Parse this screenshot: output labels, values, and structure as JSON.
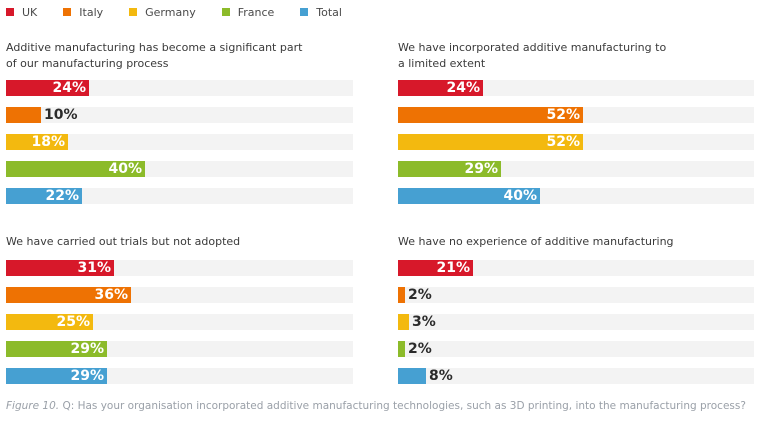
{
  "legend": [
    {
      "label": "UK",
      "color": "#d7182a"
    },
    {
      "label": "Italy",
      "color": "#ee7203"
    },
    {
      "label": "Germany",
      "color": "#f3b90f"
    },
    {
      "label": "France",
      "color": "#8cbb2a"
    },
    {
      "label": "Total",
      "color": "#46a0d2"
    }
  ],
  "caption": {
    "figure": "Figure 10.",
    "text": "Q: Has your organisation incorporated additive manufacturing technologies, such as 3D printing, into the manufacturing process?"
  },
  "chart_data": [
    {
      "type": "bar",
      "title": "Additive manufacturing has become a significant part\nof our manufacturing process",
      "categories": [
        "UK",
        "Italy",
        "Germany",
        "France",
        "Total"
      ],
      "values": [
        24,
        10,
        18,
        40,
        22
      ],
      "labels": [
        "24%",
        "10%",
        "18%",
        "40%",
        "22%"
      ],
      "xlim": [
        0,
        100
      ]
    },
    {
      "type": "bar",
      "title": "We have incorporated additive manufacturing to\na limited extent",
      "categories": [
        "UK",
        "Italy",
        "Germany",
        "France",
        "Total"
      ],
      "values": [
        24,
        52,
        52,
        29,
        40
      ],
      "labels": [
        "24%",
        "52%",
        "52%",
        "29%",
        "40%"
      ],
      "xlim": [
        0,
        100
      ]
    },
    {
      "type": "bar",
      "title": "We have carried out trials but not adopted",
      "categories": [
        "UK",
        "Italy",
        "Germany",
        "France",
        "Total"
      ],
      "values": [
        31,
        36,
        25,
        29,
        29
      ],
      "labels": [
        "31%",
        "36%",
        "25%",
        "29%",
        "29%"
      ],
      "xlim": [
        0,
        100
      ]
    },
    {
      "type": "bar",
      "title": "We have no experience of additive manufacturing",
      "categories": [
        "UK",
        "Italy",
        "Germany",
        "France",
        "Total"
      ],
      "values": [
        21,
        2,
        3,
        2,
        8
      ],
      "labels": [
        "21%",
        "2%",
        "3%",
        "2%",
        "8%"
      ],
      "xlim": [
        0,
        100
      ]
    }
  ]
}
